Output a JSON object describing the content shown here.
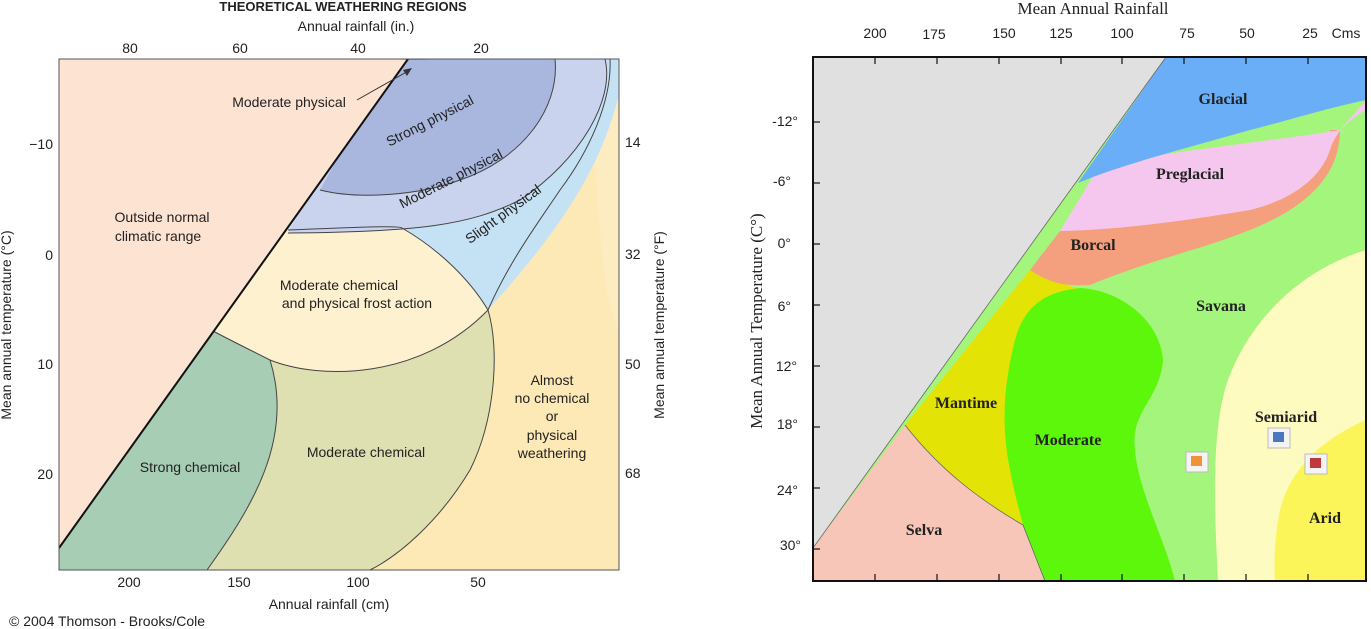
{
  "left_figure": {
    "title": "THEORETICAL WEATHERING REGIONS",
    "top_axis_label": "Annual rainfall (in.)",
    "top_ticks": [
      "80",
      "60",
      "40",
      "20"
    ],
    "bottom_axis_label": "Annual rainfall (cm)",
    "bottom_ticks": [
      "200",
      "150",
      "100",
      "50"
    ],
    "left_axis_label": "Mean annual temperature (°C)",
    "left_ticks": [
      "−10",
      "0",
      "10",
      "20"
    ],
    "right_axis_label": "Mean annual temperature (°F)",
    "right_ticks": [
      "14",
      "32",
      "50",
      "68"
    ],
    "regions": {
      "outside_line1": "Outside normal",
      "outside_line2": "climatic range",
      "moderate_physical_callout": "Moderate physical",
      "strong_physical": "Strong physical",
      "moderate_physical": "Moderate physical",
      "slight_physical": "Slight physical",
      "frost_line1": "Moderate chemical",
      "frost_line2": "and physical frost action",
      "strong_chemical": "Strong chemical",
      "moderate_chemical": "Moderate chemical",
      "almost_line1": "Almost",
      "almost_line2": "no chemical",
      "almost_line3": "or",
      "almost_line4": "physical",
      "almost_line5": "weathering"
    },
    "colors": {
      "outside": "#fde3d2",
      "strong_physical": "#a9b7de",
      "moderate_physical": "#c9d3ee",
      "slight_physical": "#c5e2f5",
      "frost": "#fdf1d0",
      "strong_chemical": "#a7cdb4",
      "moderate_chemical": "#dfe0b2",
      "almost_none": "#fde9b6"
    },
    "copyright": "© 2004 Thomson - Brooks/Cole"
  },
  "right_figure": {
    "top_axis_label": "Mean Annual Rainfall",
    "top_ticks": [
      "200",
      "175",
      "150",
      "125",
      "100",
      "75",
      "50",
      "25",
      "Cms"
    ],
    "left_axis_label": "Mean Annual Temperature (C°)",
    "left_ticks": [
      "-12°",
      "-6°",
      "0°",
      "6°",
      "12°",
      "18°",
      "24°",
      "30°"
    ],
    "regions": {
      "glacial": "Glacial",
      "preglacial": "Preglacial",
      "boreal": "Borcal",
      "savana": "Savana",
      "mantime": "Mantime",
      "moderate": "Moderate",
      "semiarid": "Semiarid",
      "selva": "Selva",
      "arid": "Arid"
    },
    "colors": {
      "excluded": "#e0e0e0",
      "glacial": "#6aaef7",
      "preglacial": "#f6c7ee",
      "boreal": "#f4a07f",
      "savana": "#a4f57b",
      "mantime": "#e4e306",
      "moderate": "#5cf70a",
      "semiarid": "#fdfbc0",
      "selva": "#f8c6b8",
      "arid": "#fbf559",
      "marker_orange": "#f19239",
      "marker_blue": "#4a78c0",
      "marker_red": "#c0393c"
    }
  }
}
